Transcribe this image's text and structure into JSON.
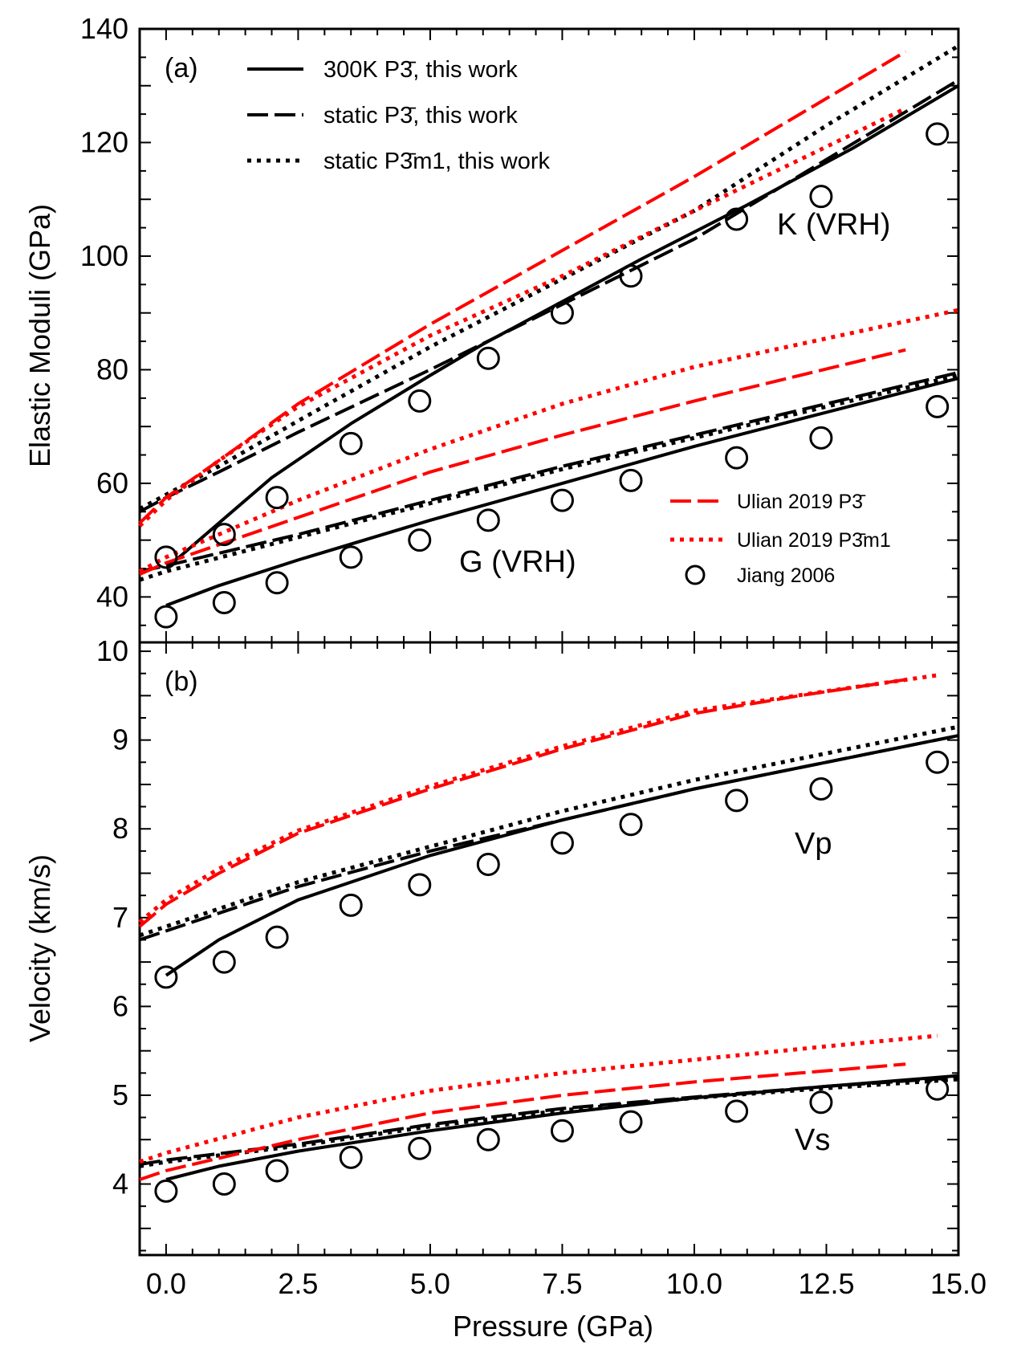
{
  "chart_data": [
    {
      "panel": "(a)",
      "type": "line",
      "ylabel": "Elastic Moduli (GPa)",
      "xlim": [
        -0.5,
        15.0
      ],
      "ylim": [
        32,
        140
      ],
      "yticks": [
        40,
        60,
        80,
        100,
        120,
        140
      ],
      "annotations": [
        "K (VRH)",
        "G (VRH)"
      ],
      "legend_top": [
        {
          "key": "k300",
          "label": "300K P3̄, this work"
        },
        {
          "key": "kstatic",
          "label": "static P3̄, this work"
        },
        {
          "key": "kp3m1",
          "label": "static P3̄m1, this work"
        }
      ],
      "legend_bottom": [
        {
          "key": "kulian",
          "label": "Ulian 2019 P3̄"
        },
        {
          "key": "kulianp3m1",
          "label": "Ulian 2019 P3̄m1"
        },
        {
          "key": "kjiang",
          "label": "Jiang 2006"
        }
      ],
      "series": [
        {
          "name": "K 300K P-3 this work",
          "color": "#000000",
          "style": "solid",
          "x": [
            0,
            1,
            2,
            3.5,
            5,
            6,
            7.5,
            9,
            11,
            13,
            15
          ],
          "y": [
            45,
            53,
            61,
            70.5,
            79,
            84.5,
            92,
            99.5,
            109,
            119,
            130
          ]
        },
        {
          "name": "K static P-3 this work",
          "color": "#000000",
          "style": "dashed",
          "x": [
            -0.5,
            0,
            1,
            2.5,
            5,
            7.5,
            10,
            12.5,
            15
          ],
          "y": [
            55,
            57.5,
            62,
            69,
            80,
            91.5,
            103,
            117,
            131
          ]
        },
        {
          "name": "K static P-3m1 this work",
          "color": "#000000",
          "style": "dotted",
          "x": [
            -0.5,
            0,
            1,
            2.5,
            5,
            7.5,
            10,
            12.5,
            15
          ],
          "y": [
            55.5,
            58,
            63,
            71,
            84,
            96,
            108,
            123,
            137
          ]
        },
        {
          "name": "K Ulian 2019 P-3",
          "color": "#ff0000",
          "style": "dashed",
          "x": [
            -0.5,
            0,
            1,
            2.5,
            5,
            7.5,
            10,
            12,
            14
          ],
          "y": [
            53,
            57.5,
            64,
            74,
            88,
            101,
            114,
            125,
            136
          ]
        },
        {
          "name": "K Ulian 2019 P-3m1",
          "color": "#ff0000",
          "style": "dotted",
          "x": [
            -0.5,
            0,
            1,
            2.5,
            5,
            7.5,
            10,
            12,
            14
          ],
          "y": [
            52.5,
            57,
            64,
            73.5,
            86,
            96.5,
            108,
            117,
            126
          ]
        },
        {
          "name": "G 300K P-3 this work",
          "color": "#000000",
          "style": "solid",
          "x": [
            0,
            1,
            2.5,
            5,
            7.5,
            10,
            12.5,
            15
          ],
          "y": [
            38.5,
            42,
            46.5,
            53.5,
            60,
            66.5,
            72.5,
            78.5
          ]
        },
        {
          "name": "G static P-3 this work",
          "color": "#000000",
          "style": "dashed",
          "x": [
            -0.5,
            0,
            2.5,
            5,
            7.5,
            10,
            12.5,
            15
          ],
          "y": [
            44.5,
            45.5,
            51,
            57,
            63,
            68.5,
            74,
            79.5
          ]
        },
        {
          "name": "G static P-3m1 this work",
          "color": "#000000",
          "style": "dotted",
          "x": [
            -0.5,
            0,
            2.5,
            5,
            7.5,
            10,
            12.5,
            15
          ],
          "y": [
            43,
            44.5,
            50.5,
            56.5,
            62.5,
            68,
            73.5,
            79
          ]
        },
        {
          "name": "G Ulian 2019 P-3",
          "color": "#ff0000",
          "style": "dashed",
          "x": [
            -0.5,
            0,
            2.5,
            5,
            7.5,
            10,
            12,
            14
          ],
          "y": [
            44,
            46,
            54,
            62,
            68.5,
            74.5,
            79,
            83.5
          ]
        },
        {
          "name": "G Ulian 2019 P-3m1",
          "color": "#ff0000",
          "style": "dotted",
          "x": [
            -0.5,
            0,
            2.5,
            5,
            7.5,
            10,
            12.5,
            15
          ],
          "y": [
            44.5,
            47,
            57,
            66,
            74,
            80.5,
            85.5,
            90.5
          ]
        },
        {
          "name": "K Jiang 2006",
          "color": "#000000",
          "style": "markers",
          "x": [
            0,
            1.1,
            2.1,
            3.5,
            4.8,
            6.1,
            7.5,
            8.8,
            10.8,
            12.4,
            14.6
          ],
          "y": [
            47,
            51,
            57.5,
            67,
            74.5,
            82,
            90,
            96.5,
            106.5,
            110.5,
            121.5
          ]
        },
        {
          "name": "G Jiang 2006",
          "color": "#000000",
          "style": "markers",
          "x": [
            0,
            1.1,
            2.1,
            3.5,
            4.8,
            6.1,
            7.5,
            8.8,
            10.8,
            12.4,
            14.6
          ],
          "y": [
            36.5,
            39,
            42.5,
            47,
            50,
            53.5,
            57,
            60.5,
            64.5,
            68,
            73.5
          ]
        }
      ]
    },
    {
      "panel": "(b)",
      "type": "line",
      "xlabel": "Pressure (GPa)",
      "ylabel": "Velocity (km/s)",
      "xlim": [
        -0.5,
        15.0
      ],
      "ylim": [
        3.2,
        10.1
      ],
      "xticks": [
        "0.0",
        "2.5",
        "5.0",
        "7.5",
        "10.0",
        "12.5",
        "15.0"
      ],
      "xtick_values": [
        0,
        2.5,
        5,
        7.5,
        10,
        12.5,
        15
      ],
      "yticks": [
        4,
        5,
        6,
        7,
        8,
        9,
        10
      ],
      "annotations": [
        "Vp",
        "Vs"
      ],
      "series": [
        {
          "name": "Vp 300K P-3 this work",
          "color": "#000000",
          "style": "solid",
          "x": [
            0,
            1,
            2.5,
            5,
            7.5,
            10,
            12.5,
            15
          ],
          "y": [
            6.35,
            6.75,
            7.2,
            7.7,
            8.1,
            8.45,
            8.75,
            9.05
          ]
        },
        {
          "name": "Vp static P-3 this work",
          "color": "#000000",
          "style": "dashed",
          "x": [
            -0.5,
            0,
            2.5,
            5,
            7.5,
            10,
            12.5,
            15
          ],
          "y": [
            6.75,
            6.85,
            7.35,
            7.75,
            8.1,
            8.45,
            8.75,
            9.05
          ]
        },
        {
          "name": "Vp static P-3m1 this work",
          "color": "#000000",
          "style": "dotted",
          "x": [
            -0.5,
            0,
            2.5,
            5,
            7.5,
            10,
            12.5,
            15
          ],
          "y": [
            6.8,
            6.9,
            7.4,
            7.8,
            8.2,
            8.55,
            8.85,
            9.15
          ]
        },
        {
          "name": "Vp Ulian 2019 P-3",
          "color": "#ff0000",
          "style": "dashed",
          "x": [
            -0.5,
            0,
            1,
            2.5,
            5,
            7.5,
            10,
            12,
            14
          ],
          "y": [
            6.9,
            7.15,
            7.5,
            7.95,
            8.45,
            8.9,
            9.3,
            9.5,
            9.68
          ]
        },
        {
          "name": "Vp Ulian 2019 P-3m1",
          "color": "#ff0000",
          "style": "dotted",
          "x": [
            -0.5,
            0,
            1,
            2.5,
            5,
            7.5,
            10,
            12.5,
            14.6
          ],
          "y": [
            6.95,
            7.2,
            7.55,
            7.98,
            8.48,
            8.93,
            9.33,
            9.55,
            9.73
          ]
        },
        {
          "name": "Vs 300K P-3 this work",
          "color": "#000000",
          "style": "solid",
          "x": [
            0,
            1,
            2.5,
            5,
            7.5,
            10,
            12.5,
            15
          ],
          "y": [
            4.05,
            4.2,
            4.37,
            4.6,
            4.8,
            4.97,
            5.1,
            5.22
          ]
        },
        {
          "name": "Vs static P-3 this work",
          "color": "#000000",
          "style": "dashed",
          "x": [
            -0.5,
            0,
            2.5,
            5,
            7.5,
            10,
            12.5,
            15
          ],
          "y": [
            4.22,
            4.27,
            4.45,
            4.67,
            4.85,
            4.98,
            5.1,
            5.2
          ]
        },
        {
          "name": "Vs static P-3m1 this work",
          "color": "#000000",
          "style": "dotted",
          "x": [
            -0.5,
            0,
            2.5,
            5,
            7.5,
            10,
            12.5,
            15
          ],
          "y": [
            4.2,
            4.25,
            4.43,
            4.65,
            4.83,
            4.97,
            5.08,
            5.18
          ]
        },
        {
          "name": "Vs Ulian 2019 P-3",
          "color": "#ff0000",
          "style": "dashed",
          "x": [
            -0.5,
            0,
            2.5,
            5,
            7.5,
            10,
            12,
            14
          ],
          "y": [
            4.05,
            4.15,
            4.5,
            4.8,
            5.0,
            5.15,
            5.25,
            5.35
          ]
        },
        {
          "name": "Vs Ulian 2019 P-3m1",
          "color": "#ff0000",
          "style": "dotted",
          "x": [
            -0.5,
            0,
            2.5,
            5,
            7.5,
            10,
            12.5,
            14.6
          ],
          "y": [
            4.25,
            4.35,
            4.75,
            5.05,
            5.25,
            5.4,
            5.55,
            5.67
          ]
        },
        {
          "name": "Vp Jiang 2006",
          "color": "#000000",
          "style": "markers",
          "x": [
            0,
            1.1,
            2.1,
            3.5,
            4.8,
            6.1,
            7.5,
            8.8,
            10.8,
            12.4,
            14.6
          ],
          "y": [
            6.33,
            6.5,
            6.78,
            7.14,
            7.37,
            7.6,
            7.84,
            8.05,
            8.32,
            8.45,
            8.75
          ]
        },
        {
          "name": "Vs Jiang 2006",
          "color": "#000000",
          "style": "markers",
          "x": [
            0,
            1.1,
            2.1,
            3.5,
            4.8,
            6.1,
            7.5,
            8.8,
            10.8,
            12.4,
            14.6
          ],
          "y": [
            3.92,
            4.0,
            4.15,
            4.3,
            4.4,
            4.5,
            4.6,
            4.7,
            4.82,
            4.92,
            5.07
          ]
        }
      ]
    }
  ]
}
